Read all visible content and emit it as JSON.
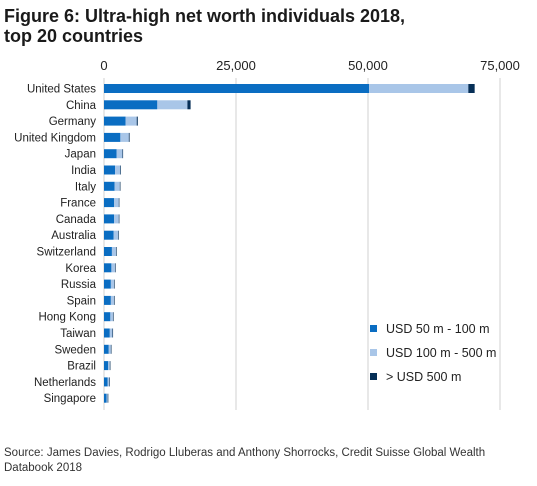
{
  "title_line1": "Figure 6: Ultra-high net worth individuals 2018,",
  "title_line2": "top 20 countries",
  "source": "Source: James Davies, Rodrigo Lluberas and Anthony Shorrocks, Credit Suisse Global Wealth Databook 2018",
  "colors": {
    "s1": "#0a6dc2",
    "s2": "#a9c6e8",
    "s3": "#062f57",
    "grid": "#d0d0d0"
  },
  "chart_data": {
    "type": "bar",
    "orientation": "horizontal",
    "stacked": true,
    "title": "Figure 6: Ultra-high net worth individuals 2018, top 20 countries",
    "categories": [
      "United States",
      "China",
      "Germany",
      "United Kingdom",
      "Japan",
      "India",
      "Italy",
      "France",
      "Canada",
      "Australia",
      "Switzerland",
      "Korea",
      "Russia",
      "Spain",
      "Hong Kong",
      "Taiwan",
      "Sweden",
      "Brazil",
      "Netherlands",
      "Singapore"
    ],
    "series": [
      {
        "name": "USD 50 m - 100 m",
        "values": [
          50200,
          10100,
          4100,
          3100,
          2400,
          2100,
          2000,
          1900,
          1900,
          1800,
          1500,
          1400,
          1300,
          1300,
          1200,
          1100,
          900,
          800,
          700,
          500
        ]
      },
      {
        "name": "USD 100 m - 500 m",
        "values": [
          18800,
          5700,
          2100,
          1600,
          1100,
          1000,
          1000,
          900,
          900,
          900,
          800,
          700,
          600,
          600,
          500,
          500,
          400,
          300,
          300,
          200
        ]
      },
      {
        "name": "> USD 500 m",
        "values": [
          1200,
          600,
          200,
          150,
          100,
          100,
          100,
          100,
          100,
          100,
          100,
          100,
          100,
          100,
          100,
          50,
          50,
          50,
          50,
          50
        ]
      }
    ],
    "xlim": [
      0,
      75000
    ],
    "xticks": [
      "0",
      "25,000",
      "50,000",
      "75,000"
    ],
    "xtick_values": [
      0,
      25000,
      50000,
      75000
    ],
    "grid": true,
    "legend_position": "bottom-right"
  }
}
